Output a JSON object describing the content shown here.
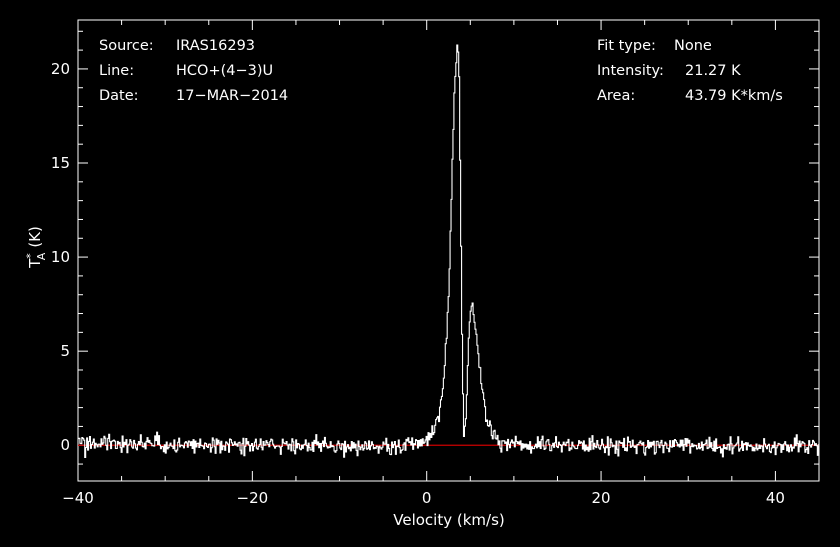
{
  "info_left": [
    {
      "label": "Source:",
      "value": "IRAS16293"
    },
    {
      "label": "Line:",
      "value": "HCO+(4−3)U"
    },
    {
      "label": "Date:",
      "value": "17−MAR−2014"
    }
  ],
  "info_right": [
    {
      "label": "Fit type:",
      "value": "None"
    },
    {
      "label": "Intensity:",
      "value": "21.27 K"
    },
    {
      "label": "Area:",
      "value": "43.79 K*km/s"
    }
  ],
  "colors": {
    "background": "#000000",
    "spectrum": "#ffffff",
    "baseline": "#cc0000"
  },
  "chart_data": {
    "type": "line",
    "xlabel": "Velocity (km/s)",
    "ylabel_main": "T",
    "ylabel_sup": "*",
    "ylabel_sub": "A",
    "ylabel_unit": "(K)",
    "xlim": [
      -40,
      45
    ],
    "ylim": [
      -1.9,
      22.6
    ],
    "x_ticks": [
      -40,
      -20,
      0,
      20,
      40
    ],
    "x_tick_labels": [
      "−40",
      "−20",
      "0",
      "20",
      "40"
    ],
    "y_ticks": [
      0,
      5,
      10,
      15,
      20
    ],
    "y_tick_labels": [
      "0",
      "5",
      "10",
      "15",
      "20"
    ],
    "x_minor_step": 5,
    "y_minor_step": 1,
    "baseline": 0,
    "noise_rms": 0.22,
    "spectrum_points": [
      [
        -40,
        0.1
      ],
      [
        -5,
        -0.1
      ],
      [
        -1,
        0.05
      ],
      [
        0,
        0.3
      ],
      [
        0.8,
        0.8
      ],
      [
        1.5,
        1.8
      ],
      [
        2.0,
        3.5
      ],
      [
        2.5,
        7.5
      ],
      [
        2.9,
        14.0
      ],
      [
        3.2,
        19.0
      ],
      [
        3.5,
        21.27
      ],
      [
        3.7,
        20.5
      ],
      [
        3.9,
        12.0
      ],
      [
        4.1,
        4.0
      ],
      [
        4.3,
        0.2
      ],
      [
        4.5,
        1.5
      ],
      [
        4.8,
        5.5
      ],
      [
        5.1,
        7.5
      ],
      [
        5.5,
        6.8
      ],
      [
        6.0,
        4.5
      ],
      [
        6.5,
        2.6
      ],
      [
        7.0,
        1.3
      ],
      [
        7.5,
        0.6
      ],
      [
        8.0,
        0.25
      ],
      [
        9.0,
        0.05
      ],
      [
        12,
        0.0
      ],
      [
        45,
        -0.05
      ]
    ],
    "peak_intensity": 21.27,
    "area": 43.79
  }
}
